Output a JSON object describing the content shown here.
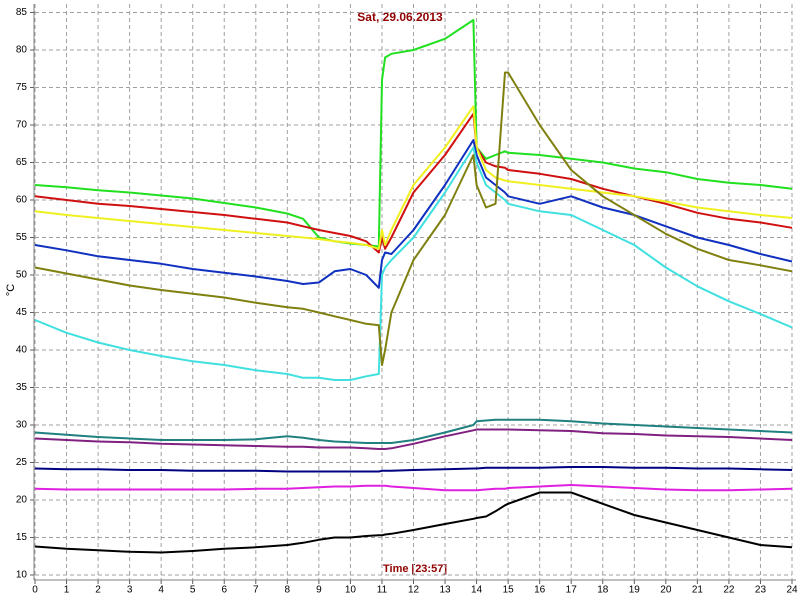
{
  "chart_data": {
    "type": "line",
    "title": "Sat, 29.06.2013",
    "xlabel": "Time [23:57]",
    "ylabel": "°C",
    "grid": true,
    "x": [
      0,
      1,
      2,
      3,
      4,
      5,
      6,
      7,
      8,
      8.5,
      9,
      9.5,
      10,
      10.5,
      10.9,
      11,
      11.1,
      11.3,
      12,
      13,
      13.9,
      14,
      14.3,
      14.6,
      14.9,
      15,
      16,
      17,
      18,
      19,
      20,
      21,
      22,
      23,
      24
    ],
    "xlim": [
      0,
      24
    ],
    "xticks": [
      0,
      1,
      2,
      3,
      4,
      5,
      6,
      7,
      8,
      9,
      10,
      11,
      12,
      13,
      14,
      15,
      16,
      17,
      18,
      19,
      20,
      21,
      22,
      23,
      24
    ],
    "ylim": [
      10,
      85
    ],
    "yticks": [
      10,
      15,
      20,
      25,
      30,
      35,
      40,
      45,
      50,
      55,
      60,
      65,
      70,
      75,
      80,
      85
    ],
    "series": [
      {
        "color": "#20e020",
        "values": [
          62,
          61.7,
          61.3,
          61,
          60.6,
          60.2,
          59.6,
          59,
          58.2,
          57.5,
          55,
          54.5,
          54.2,
          54,
          53.8,
          76,
          79,
          79.5,
          80,
          81.5,
          84,
          67,
          65.5,
          66,
          66.5,
          66.3,
          66,
          65.5,
          65,
          64.2,
          63.7,
          62.8,
          62.3,
          62,
          61.5
        ]
      },
      {
        "color": "#d01010",
        "values": [
          60.5,
          60,
          59.5,
          59.2,
          58.8,
          58.4,
          58,
          57.5,
          57,
          56.5,
          56,
          55.6,
          55.2,
          54.5,
          53,
          55,
          53.5,
          55,
          61,
          66,
          71.5,
          67,
          65,
          64.5,
          64.3,
          64,
          63.5,
          62.8,
          61.5,
          60.5,
          59.5,
          58.3,
          57.5,
          57,
          56.3
        ]
      },
      {
        "color": "#f0f020",
        "values": [
          58.5,
          58,
          57.6,
          57.2,
          56.8,
          56.4,
          56,
          55.6,
          55.2,
          55,
          54.8,
          54.5,
          54.3,
          54,
          53.5,
          56,
          54,
          56,
          62,
          67,
          72.5,
          67,
          64,
          63,
          62.6,
          62.5,
          62,
          61.5,
          61,
          60.5,
          59.8,
          59,
          58.5,
          58,
          57.6
        ]
      },
      {
        "color": "#1030c0",
        "values": [
          54,
          53.3,
          52.5,
          52,
          51.5,
          50.8,
          50.3,
          49.8,
          49.2,
          48.8,
          49,
          50.5,
          50.8,
          50,
          48.3,
          52,
          53,
          52.8,
          56,
          62,
          68,
          66,
          63,
          62,
          61,
          60.5,
          59.5,
          60.5,
          59,
          58,
          56.5,
          55,
          54,
          52.8,
          51.8
        ]
      },
      {
        "color": "#40e0e0",
        "values": [
          44,
          42.3,
          41,
          40,
          39.2,
          38.5,
          38,
          37.3,
          36.8,
          36.3,
          36.3,
          36,
          36,
          36.5,
          36.8,
          50,
          51,
          52,
          55,
          61,
          67,
          65,
          62,
          61,
          60,
          59.5,
          58.5,
          58,
          56,
          54,
          51,
          48.5,
          46.5,
          44.8,
          43
        ]
      },
      {
        "color": "#808010",
        "values": [
          51,
          50.2,
          49.4,
          48.6,
          48,
          47.5,
          47,
          46.3,
          45.7,
          45.5,
          45,
          44.5,
          44,
          43.5,
          43.3,
          38,
          40,
          45,
          52,
          58,
          66,
          62,
          59,
          59.5,
          77,
          77,
          70,
          64,
          60.5,
          58,
          55.5,
          53.5,
          52,
          51.3,
          50.5
        ]
      },
      {
        "color": "#208080",
        "values": [
          29,
          28.7,
          28.4,
          28.2,
          28,
          28,
          28,
          28.1,
          28.5,
          28.3,
          28,
          27.8,
          27.7,
          27.6,
          27.6,
          27.6,
          27.6,
          27.6,
          28,
          29,
          30,
          30.5,
          30.6,
          30.7,
          30.7,
          30.7,
          30.7,
          30.5,
          30.2,
          30,
          29.8,
          29.6,
          29.4,
          29.2,
          29
        ]
      },
      {
        "color": "#802080",
        "values": [
          28.2,
          28,
          27.8,
          27.7,
          27.5,
          27.4,
          27.3,
          27.2,
          27.1,
          27.1,
          27,
          27,
          27,
          26.9,
          26.8,
          26.8,
          26.8,
          26.9,
          27.5,
          28.5,
          29.3,
          29.4,
          29.4,
          29.4,
          29.4,
          29.4,
          29.3,
          29.2,
          28.9,
          28.8,
          28.6,
          28.5,
          28.4,
          28.2,
          28
        ]
      },
      {
        "color": "#000080",
        "values": [
          24.2,
          24.1,
          24.1,
          24,
          24,
          23.9,
          23.9,
          23.9,
          23.8,
          23.8,
          23.8,
          23.8,
          23.8,
          23.8,
          23.8,
          23.9,
          23.9,
          23.9,
          24,
          24.1,
          24.2,
          24.2,
          24.3,
          24.3,
          24.3,
          24.3,
          24.3,
          24.4,
          24.4,
          24.3,
          24.3,
          24.2,
          24.2,
          24.1,
          24
        ]
      },
      {
        "color": "#e020e0",
        "values": [
          21.5,
          21.4,
          21.4,
          21.4,
          21.4,
          21.4,
          21.4,
          21.5,
          21.5,
          21.6,
          21.7,
          21.8,
          21.8,
          21.9,
          21.9,
          21.9,
          21.9,
          21.8,
          21.6,
          21.3,
          21.3,
          21.3,
          21.4,
          21.5,
          21.5,
          21.6,
          21.8,
          22,
          21.8,
          21.6,
          21.4,
          21.3,
          21.3,
          21.4,
          21.5
        ]
      },
      {
        "color": "#000000",
        "values": [
          13.8,
          13.5,
          13.3,
          13.1,
          13,
          13.2,
          13.5,
          13.7,
          14,
          14.3,
          14.7,
          15,
          15,
          15.2,
          15.3,
          15.3,
          15.4,
          15.5,
          16,
          16.8,
          17.5,
          17.6,
          17.8,
          18.5,
          19.3,
          19.5,
          21,
          21,
          19.5,
          18,
          17,
          16,
          15,
          14,
          13.7
        ]
      }
    ]
  }
}
